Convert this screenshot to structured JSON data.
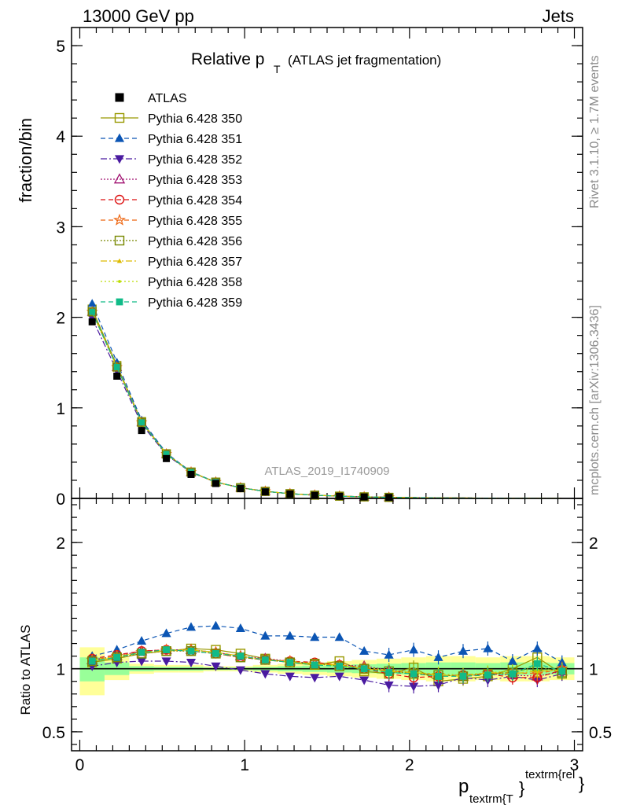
{
  "header": {
    "left": "13000 GeV pp",
    "right": "Jets"
  },
  "side_labels": {
    "rivet": "Rivet 3.1.10, ≥ 1.7M events",
    "mcplots": "mcplots.cern.ch [arXiv:1306.3436]"
  },
  "plot_title": {
    "main": "Relative p",
    "sub": "T",
    "rest": "(ATLAS jet fragmentation)"
  },
  "analysis_label": "ATLAS_2019_I1740909",
  "x_label": {
    "p": "p",
    "sub": "textrm{T",
    "brace": "}",
    "sup": "textrm{rel",
    "close": "}"
  },
  "colors": {
    "band_outer": "#ffff99",
    "band_inner": "#99ff99",
    "data": "#000000"
  },
  "chart_data": [
    {
      "type": "scatter",
      "panel": "main",
      "ylabel": "fraction/bin",
      "xlim": [
        -0.05,
        3.05
      ],
      "ylim": [
        0,
        5.2
      ],
      "y_ticks": [
        "0",
        "1",
        "2",
        "3",
        "4",
        "5"
      ],
      "x": [
        0.075,
        0.225,
        0.375,
        0.525,
        0.675,
        0.825,
        0.975,
        1.125,
        1.275,
        1.425,
        1.575,
        1.725,
        1.875,
        2.025,
        2.175,
        2.325,
        2.475,
        2.625,
        2.775,
        2.925
      ],
      "data": {
        "name": "ATLAS",
        "values": [
          1.95,
          1.35,
          0.75,
          0.44,
          0.265,
          0.165,
          0.108,
          0.072,
          0.048,
          0.033,
          0.023,
          0.016,
          0.011,
          0.008,
          0.006,
          0.0045,
          0.0034,
          0.0026,
          0.002,
          0.0015
        ]
      },
      "mc_reference": [
        2.06,
        1.45,
        0.84,
        0.49,
        0.29,
        0.18,
        0.118,
        0.078,
        0.052,
        0.036,
        0.025,
        0.017,
        0.012,
        0.0085,
        0.0063,
        0.0047,
        0.0036,
        0.0027,
        0.0021,
        0.0016
      ]
    },
    {
      "type": "scatter",
      "panel": "ratio",
      "ylabel": "Ratio to ATLAS",
      "xlim": [
        -0.05,
        3.05
      ],
      "ylim": [
        0.35,
        2.35
      ],
      "y_ticks": [
        "0.5",
        "1",
        "2"
      ],
      "x_ticks": [
        "0",
        "1",
        "2",
        "3"
      ],
      "band_edges": [
        0,
        0.15,
        0.3,
        0.45,
        0.6,
        0.75,
        0.9,
        1.05,
        1.2,
        1.35,
        1.5,
        1.65,
        1.8,
        1.95,
        2.1,
        2.25,
        2.4,
        2.55,
        2.7,
        2.85,
        3.0
      ],
      "band_outer": [
        [
          0.79,
          1.17
        ],
        [
          0.91,
          1.09
        ],
        [
          0.96,
          1.04
        ],
        [
          0.97,
          1.03
        ],
        [
          0.97,
          1.03
        ],
        [
          0.98,
          1.02
        ],
        [
          0.98,
          1.02
        ],
        [
          0.97,
          1.03
        ],
        [
          0.96,
          1.04
        ],
        [
          0.95,
          1.05
        ],
        [
          0.94,
          1.06
        ],
        [
          0.93,
          1.07
        ],
        [
          0.92,
          1.08
        ],
        [
          0.91,
          1.09
        ],
        [
          0.9,
          1.1
        ],
        [
          0.9,
          1.1
        ],
        [
          0.91,
          1.09
        ],
        [
          0.9,
          1.1
        ],
        [
          0.9,
          1.1
        ],
        [
          0.91,
          1.09
        ]
      ],
      "band_inner": [
        [
          0.9,
          1.09
        ],
        [
          0.95,
          1.05
        ],
        [
          0.98,
          1.02
        ],
        [
          0.985,
          1.015
        ],
        [
          0.985,
          1.015
        ],
        [
          0.99,
          1.01
        ],
        [
          0.99,
          1.01
        ],
        [
          0.985,
          1.015
        ],
        [
          0.98,
          1.02
        ],
        [
          0.975,
          1.025
        ],
        [
          0.97,
          1.03
        ],
        [
          0.965,
          1.035
        ],
        [
          0.96,
          1.04
        ],
        [
          0.955,
          1.045
        ],
        [
          0.95,
          1.05
        ],
        [
          0.95,
          1.05
        ],
        [
          0.955,
          1.045
        ],
        [
          0.95,
          1.05
        ],
        [
          0.95,
          1.05
        ],
        [
          0.955,
          1.045
        ]
      ],
      "x": [
        0.075,
        0.225,
        0.375,
        0.525,
        0.675,
        0.825,
        0.975,
        1.125,
        1.275,
        1.425,
        1.575,
        1.725,
        1.875,
        2.025,
        2.175,
        2.325,
        2.475,
        2.625,
        2.775,
        2.925
      ],
      "series": [
        {
          "name": "Pythia 6.428 350",
          "color": "#999900",
          "dash": "",
          "marker": "square-open",
          "values": [
            1.05,
            1.08,
            1.12,
            1.14,
            1.16,
            1.15,
            1.12,
            1.08,
            1.05,
            1.03,
            1.06,
            0.98,
            0.96,
            1.01,
            0.9,
            0.92,
            0.94,
            1.0,
            1.09,
            0.96
          ]
        },
        {
          "name": "Pythia 6.428 351",
          "color": "#0b55b4",
          "dash": "6,4",
          "marker": "triangle-up",
          "values": [
            1.1,
            1.15,
            1.22,
            1.28,
            1.33,
            1.34,
            1.32,
            1.26,
            1.26,
            1.25,
            1.25,
            1.14,
            1.11,
            1.15,
            1.09,
            1.14,
            1.16,
            1.06,
            1.16,
            1.05
          ]
        },
        {
          "name": "Pythia 6.428 352",
          "color": "#4a1aa0",
          "dash": "8,3,2,3",
          "marker": "triangle-down",
          "values": [
            1.02,
            1.05,
            1.06,
            1.06,
            1.05,
            1.02,
            0.99,
            0.96,
            0.94,
            0.93,
            0.94,
            0.91,
            0.87,
            0.86,
            0.87,
            0.93,
            0.91,
            0.94,
            0.91,
            0.96
          ]
        },
        {
          "name": "Pythia 6.428 353",
          "color": "#a01070",
          "dash": "2,2",
          "marker": "triangle-open",
          "values": [
            1.07,
            1.1,
            1.14,
            1.15,
            1.15,
            1.13,
            1.1,
            1.08,
            1.06,
            1.04,
            1.03,
            1.02,
            0.99,
            0.97,
            0.95,
            0.94,
            0.96,
            0.95,
            0.94,
            0.98
          ]
        },
        {
          "name": "Pythia 6.428 354",
          "color": "#dd1111",
          "dash": "6,4",
          "marker": "circle-open",
          "values": [
            1.08,
            1.11,
            1.14,
            1.15,
            1.14,
            1.12,
            1.09,
            1.07,
            1.06,
            1.05,
            1.03,
            1.0,
            0.96,
            0.93,
            0.94,
            0.95,
            0.96,
            0.93,
            0.93,
            0.99
          ]
        },
        {
          "name": "Pythia 6.428 355",
          "color": "#ee6611",
          "dash": "6,4",
          "marker": "star-open",
          "values": [
            1.07,
            1.1,
            1.13,
            1.15,
            1.15,
            1.13,
            1.1,
            1.07,
            1.06,
            1.04,
            1.03,
            1.01,
            0.98,
            0.97,
            0.95,
            0.94,
            0.96,
            0.97,
            0.96,
            1.0
          ]
        },
        {
          "name": "Pythia 6.428 356",
          "color": "#778800",
          "dash": "2,2",
          "marker": "square-open",
          "values": [
            1.06,
            1.09,
            1.12,
            1.14,
            1.14,
            1.12,
            1.09,
            1.07,
            1.05,
            1.04,
            1.02,
            1.0,
            0.98,
            0.96,
            0.95,
            0.94,
            0.96,
            0.97,
            1.02,
            0.97
          ]
        },
        {
          "name": "Pythia 6.428 357",
          "color": "#ddbb00",
          "dash": "8,3,2,3",
          "marker": "tri-small",
          "values": [
            1.06,
            1.09,
            1.13,
            1.14,
            1.15,
            1.13,
            1.1,
            1.07,
            1.05,
            1.04,
            1.03,
            1.0,
            0.98,
            0.97,
            0.95,
            0.94,
            0.97,
            0.96,
            0.98,
            0.99
          ]
        },
        {
          "name": "Pythia 6.428 358",
          "color": "#bbdd00",
          "dash": "2,3",
          "marker": "dot-small",
          "values": [
            1.07,
            1.1,
            1.13,
            1.15,
            1.15,
            1.13,
            1.1,
            1.07,
            1.06,
            1.04,
            1.02,
            1.01,
            0.99,
            0.97,
            0.96,
            0.95,
            0.97,
            0.98,
            0.99,
            0.99
          ]
        },
        {
          "name": "Pythia 6.428 359",
          "color": "#11bb88",
          "dash": "6,4",
          "marker": "square-filled",
          "values": [
            1.06,
            1.09,
            1.13,
            1.15,
            1.14,
            1.12,
            1.1,
            1.07,
            1.05,
            1.03,
            1.02,
            1.0,
            0.97,
            0.96,
            0.94,
            0.94,
            0.95,
            0.96,
            1.04,
            0.98
          ]
        }
      ]
    }
  ]
}
